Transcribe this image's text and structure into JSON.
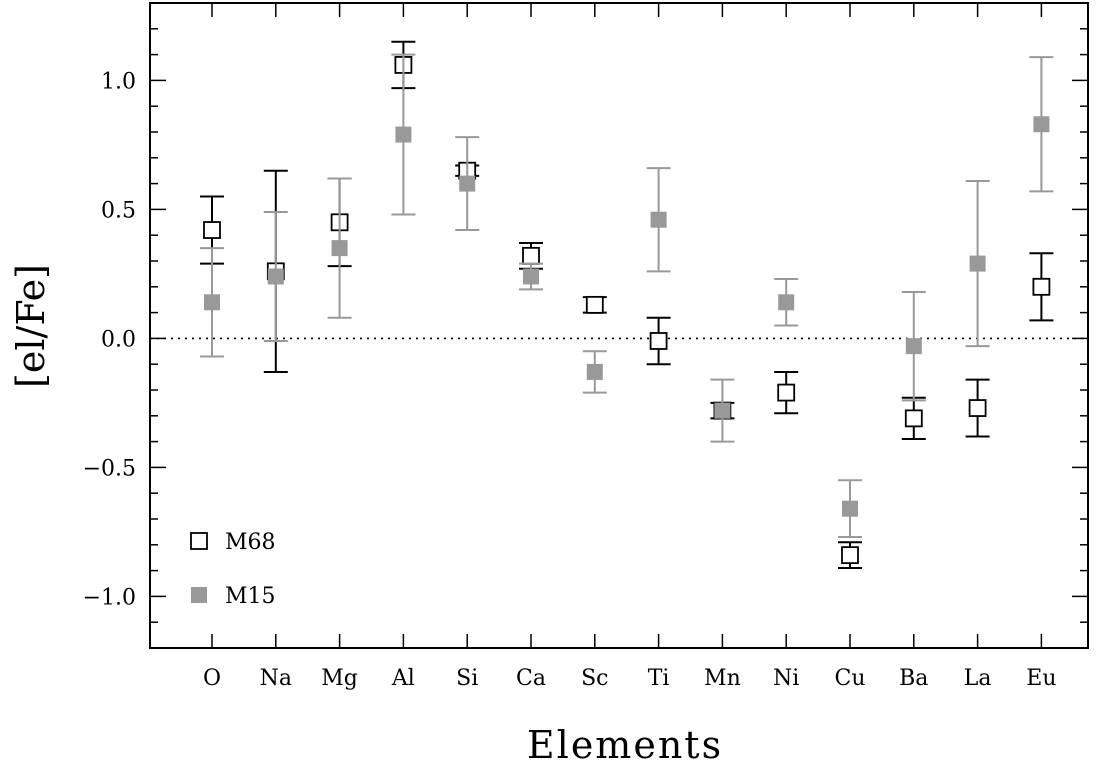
{
  "chart_data": {
    "type": "scatter",
    "title": "",
    "xlabel": "Elements",
    "ylabel": "[el/Fe]",
    "categories": [
      "O",
      "Na",
      "Mg",
      "Al",
      "Si",
      "Ca",
      "Sc",
      "Ti",
      "Mn",
      "Ni",
      "Cu",
      "Ba",
      "La",
      "Eu"
    ],
    "ylim": [
      -1.2,
      1.3
    ],
    "yticks": [
      -1.0,
      -0.5,
      0.0,
      0.5,
      1.0
    ],
    "ytick_labels": [
      "−1.0",
      "−0.5",
      "0.0",
      "0.5",
      "1.0"
    ],
    "reference_line": 0.0,
    "legend_position": "bottom-left",
    "series": [
      {
        "name": "M68",
        "marker": "open-square",
        "color": "#000000",
        "values": [
          0.42,
          0.26,
          0.45,
          1.06,
          0.65,
          0.32,
          0.13,
          -0.01,
          -0.28,
          -0.21,
          -0.84,
          -0.31,
          -0.27,
          0.2
        ],
        "errors": [
          0.13,
          0.39,
          0.17,
          0.09,
          0.02,
          0.05,
          0.03,
          0.09,
          0.03,
          0.08,
          0.05,
          0.08,
          0.11,
          0.13
        ]
      },
      {
        "name": "M15",
        "marker": "filled-square",
        "color": "#999999",
        "values": [
          0.14,
          0.24,
          0.35,
          0.79,
          0.6,
          0.24,
          -0.13,
          0.46,
          -0.28,
          0.14,
          -0.66,
          -0.03,
          0.29,
          0.83
        ],
        "errors": [
          0.21,
          0.25,
          0.27,
          0.31,
          0.18,
          0.05,
          0.08,
          0.2,
          0.12,
          0.09,
          0.11,
          0.21,
          0.32,
          0.26
        ]
      }
    ]
  }
}
